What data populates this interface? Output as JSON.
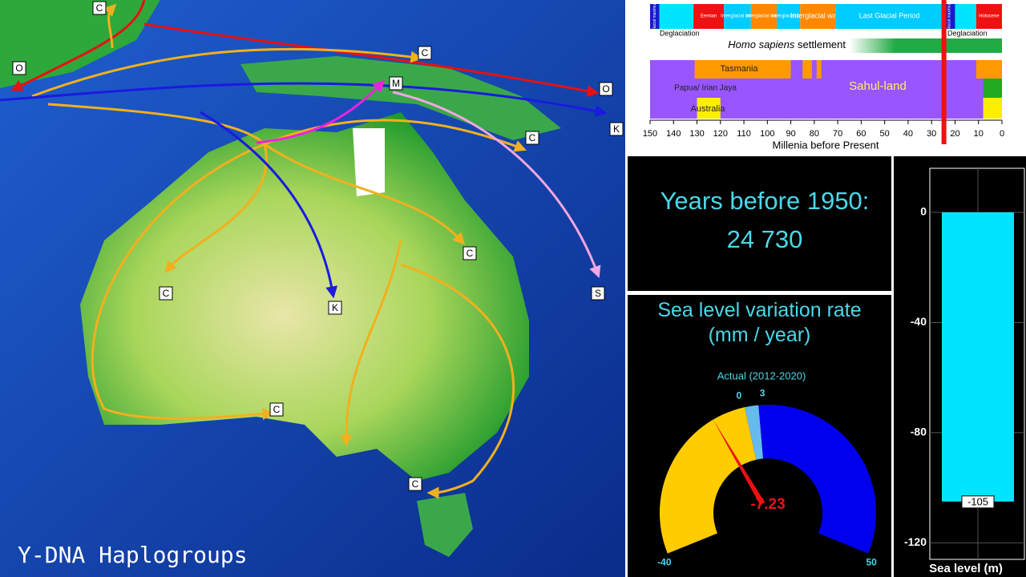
{
  "map": {
    "title": "Y-DNA Haplogroups",
    "labels": [
      "C",
      "O",
      "C",
      "M",
      "O",
      "C",
      "K",
      "C",
      "C",
      "K",
      "S",
      "C",
      "C"
    ]
  },
  "timeline": {
    "periods": [
      {
        "label": "Glacial maximum",
        "start": 150,
        "end": 146,
        "color": "#1a1acc"
      },
      {
        "start": 146,
        "end": 131.5,
        "color": "#00e5ff"
      },
      {
        "label": "Eemian",
        "start": 131.5,
        "end": 118.5,
        "color": "#ee1111"
      },
      {
        "label": "Interglacial cold",
        "start": 118.5,
        "end": 107,
        "color": "#00ccff"
      },
      {
        "label": "Interglacial warm",
        "start": 107,
        "end": 96,
        "color": "#ff8800"
      },
      {
        "label": "Interglacial cold",
        "start": 96,
        "end": 86,
        "color": "#00ccff"
      },
      {
        "label": "Interglacial warm",
        "start": 86,
        "end": 71,
        "color": "#ff8800"
      },
      {
        "label": "Last Glacial Period",
        "start": 71,
        "end": 25,
        "color": "#00ccff"
      },
      {
        "label": "Glacial maximum",
        "start": 25,
        "end": 20,
        "color": "#1a1acc"
      },
      {
        "start": 20,
        "end": 11,
        "color": "#00e5ff"
      },
      {
        "label": "Holocene",
        "start": 11,
        "end": 0,
        "color": "#ee1111"
      }
    ],
    "deglaciation": [
      "Deglaciation",
      "Deglaciation"
    ],
    "settlement": {
      "italic": "Homo sapiens",
      "label": "settlement",
      "start": 65,
      "end": 0,
      "color": "#22aa44"
    },
    "regions": [
      {
        "name": "Sahul-land",
        "color": "#9955ff",
        "spans": [
          [
            150,
            0
          ]
        ]
      },
      {
        "name": "Tasmania",
        "color": "#ff9900",
        "spans": [
          [
            131,
            90
          ],
          [
            85,
            81
          ],
          [
            79,
            77
          ],
          [
            11,
            0
          ]
        ]
      },
      {
        "name": "Papua/ Irian Jaya",
        "color": "#22aa22",
        "spans": [
          [
            8,
            0
          ]
        ]
      },
      {
        "name": "Australia",
        "color": "#ffee00",
        "spans": [
          [
            130,
            120
          ],
          [
            8,
            0
          ]
        ]
      }
    ],
    "xlim": [
      150,
      0
    ],
    "xticks": [
      150,
      140,
      130,
      120,
      110,
      100,
      90,
      80,
      70,
      60,
      50,
      40,
      30,
      20,
      10,
      0
    ],
    "x_label": "Millenia before Present",
    "marker": 24.73
  },
  "counter": {
    "label": "Years before 1950:",
    "value": "24 730"
  },
  "gauge": {
    "title": "Sea level variation rate (mm / year)",
    "actual_label": "Actual (2012-2020)",
    "min": -40,
    "max": 50,
    "actual_low": 0,
    "actual_high": 3,
    "value": -7.23
  },
  "sea_level": {
    "ylim": [
      -126,
      16
    ],
    "yticks": [
      0,
      -40,
      -80,
      -120
    ],
    "value": -105,
    "x_label": "Sea level (m)",
    "color": "#00e5ff"
  }
}
